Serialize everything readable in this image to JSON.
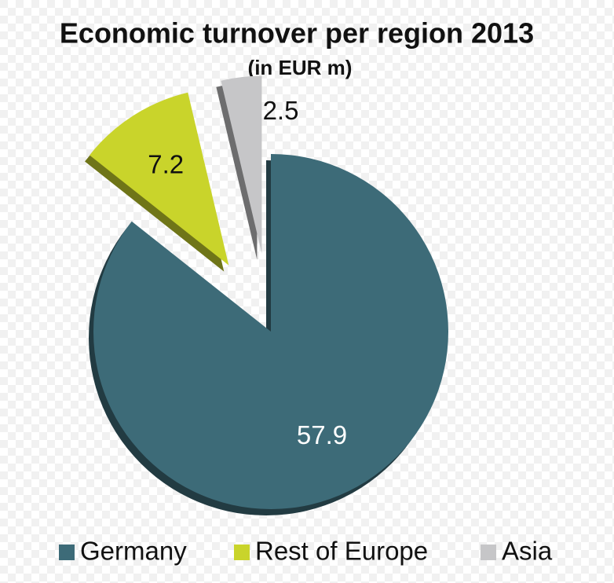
{
  "chart_data": {
    "type": "pie",
    "title": "Economic turnover per region 2013",
    "subtitle": "(in EUR m)",
    "categories": [
      "Germany",
      "Rest of Europe",
      "Asia"
    ],
    "values": [
      57.9,
      7.2,
      2.5
    ],
    "colors": [
      "#3d6b78",
      "#c9d42b",
      "#c6c6c8"
    ],
    "legend": "bottom"
  }
}
